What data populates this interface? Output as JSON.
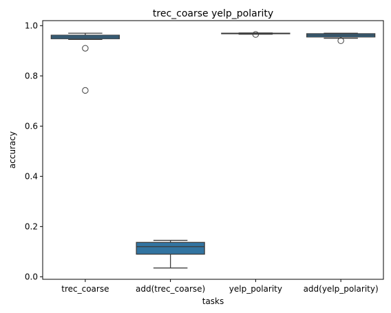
{
  "chart_data": {
    "type": "box",
    "title": "trec_coarse yelp_polarity",
    "xlabel": "tasks",
    "ylabel": "accuracy",
    "ylim": [
      -0.01,
      1.02
    ],
    "yticks": [
      0.0,
      0.2,
      0.4,
      0.6,
      0.8,
      1.0
    ],
    "ytick_labels": [
      "0.0",
      "0.2",
      "0.4",
      "0.6",
      "0.8",
      "1.0"
    ],
    "categories": [
      "trec_coarse",
      "add(trec_coarse)",
      "yelp_polarity",
      "add(yelp_polarity)"
    ],
    "box_color": "#3274a1",
    "line_color": "#3d3d3d",
    "boxes": [
      {
        "whisker_low": 0.945,
        "q1": 0.948,
        "median": 0.955,
        "q3": 0.962,
        "whisker_high": 0.97,
        "outliers": [
          0.91,
          0.742
        ]
      },
      {
        "whisker_low": 0.035,
        "q1": 0.09,
        "median": 0.12,
        "q3": 0.137,
        "whisker_high": 0.145,
        "outliers": []
      },
      {
        "whisker_low": 0.966,
        "q1": 0.968,
        "median": 0.969,
        "q3": 0.97,
        "whisker_high": 0.971,
        "outliers": [
          0.965
        ]
      },
      {
        "whisker_low": 0.95,
        "q1": 0.955,
        "median": 0.962,
        "q3": 0.968,
        "whisker_high": 0.97,
        "outliers": [
          0.94
        ]
      }
    ]
  }
}
